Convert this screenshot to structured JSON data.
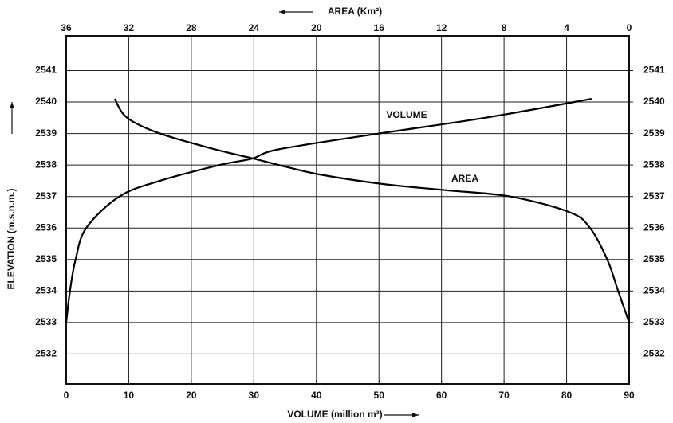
{
  "chart_data": {
    "type": "line",
    "xlabel": "VOLUME (million m³)",
    "x2label": "AREA (Km²)",
    "ylabel": "ELEVATION (m.s.n.m.)",
    "xlim": [
      0,
      90
    ],
    "xticks": [
      0,
      10,
      20,
      30,
      40,
      50,
      60,
      70,
      80,
      90
    ],
    "x2lim": [
      36,
      0
    ],
    "x2ticks": [
      36,
      32,
      28,
      24,
      20,
      16,
      12,
      8,
      4,
      0
    ],
    "ylim": [
      2531.05,
      2542.1
    ],
    "yticks": [
      2532,
      2533,
      2534,
      2535,
      2536,
      2537,
      2538,
      2539,
      2540,
      2541
    ],
    "y2lim": [
      2531.05,
      2542.1
    ],
    "y2ticks": [
      2532,
      2533,
      2534,
      2535,
      2536,
      2537,
      2538,
      2539,
      2540,
      2541
    ],
    "grid": true,
    "series": [
      {
        "name": "VOLUME",
        "color": "#000000",
        "x_axis": "x",
        "x": [
          0,
          0.6,
          1.5,
          3.2,
          8.5,
          15,
          24.5,
          29.7,
          34,
          50,
          67,
          84
        ],
        "values": [
          2533,
          2534,
          2535,
          2536,
          2537,
          2537.5,
          2538,
          2538.2,
          2538.5,
          2539,
          2539.5,
          2540.1
        ]
      },
      {
        "name": "AREA",
        "color": "#000000",
        "x_axis": "x2",
        "x": [
          0,
          0.7,
          1.4,
          2.5,
          3.8,
          7.6,
          11.7,
          15.8,
          19.8,
          22.4,
          24,
          26.5,
          30,
          32.1,
          32.9
        ],
        "values": [
          2533,
          2534,
          2535,
          2536,
          2536.5,
          2537,
          2537.2,
          2537.4,
          2537.7,
          2538,
          2538.2,
          2538.5,
          2539,
          2539.5,
          2540.1
        ]
      }
    ]
  }
}
